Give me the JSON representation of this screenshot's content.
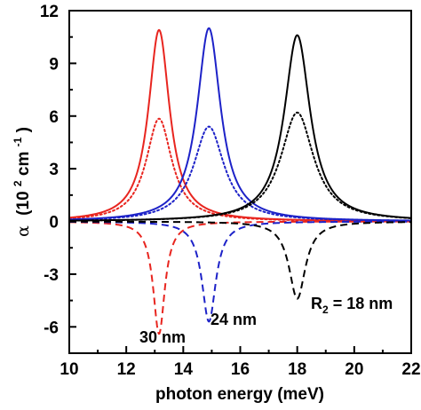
{
  "chart_data": {
    "type": "line",
    "xlabel": "photon energy (meV)",
    "ylabel_symbol": "α",
    "ylabel_unit_prefix": "(10",
    "ylabel_unit_exp": "2",
    "ylabel_unit_cm": " cm",
    "ylabel_unit_exp2": "-1",
    "ylabel_unit_suffix": ")",
    "xlim": [
      10,
      22
    ],
    "ylim": [
      -7.5,
      12
    ],
    "xticks": [
      10,
      12,
      14,
      16,
      18,
      20,
      22
    ],
    "xtick_labels": [
      "10",
      "12",
      "14",
      "16",
      "18",
      "20",
      "22"
    ],
    "yticks": [
      -6,
      -3,
      0,
      3,
      6,
      9,
      12
    ],
    "ytick_labels": [
      "-6",
      "-3",
      "0",
      "3",
      "6",
      "9",
      "12"
    ],
    "grid": false,
    "series": [
      {
        "color": "#e8251f",
        "style": "solid",
        "center": 13.15,
        "peak": 10.9,
        "hwhm": 0.45
      },
      {
        "color": "#e8251f",
        "style": "dotted",
        "center": 13.15,
        "peak": 5.85,
        "hwhm": 0.55
      },
      {
        "color": "#e8251f",
        "style": "dashed",
        "center": 13.15,
        "peak": -6.4,
        "hwhm": 0.25
      },
      {
        "color": "#1d22c8",
        "style": "solid",
        "center": 14.9,
        "peak": 11.0,
        "hwhm": 0.5
      },
      {
        "color": "#1d22c8",
        "style": "dotted",
        "center": 14.9,
        "peak": 5.4,
        "hwhm": 0.65
      },
      {
        "color": "#1d22c8",
        "style": "dashed",
        "center": 14.9,
        "peak": -5.7,
        "hwhm": 0.3
      },
      {
        "color": "#000000",
        "style": "solid",
        "center": 18.0,
        "peak": 10.6,
        "hwhm": 0.55
      },
      {
        "color": "#000000",
        "style": "dotted",
        "center": 18.0,
        "peak": 6.2,
        "hwhm": 0.7
      },
      {
        "color": "#000000",
        "style": "dashed",
        "center": 18.0,
        "peak": -4.4,
        "hwhm": 0.35
      }
    ],
    "annotations": {
      "r2_main": "R",
      "r2_sub": "2",
      "r2_rest": " = 18 nm",
      "label_24": "24 nm",
      "label_30": "30 nm"
    }
  }
}
